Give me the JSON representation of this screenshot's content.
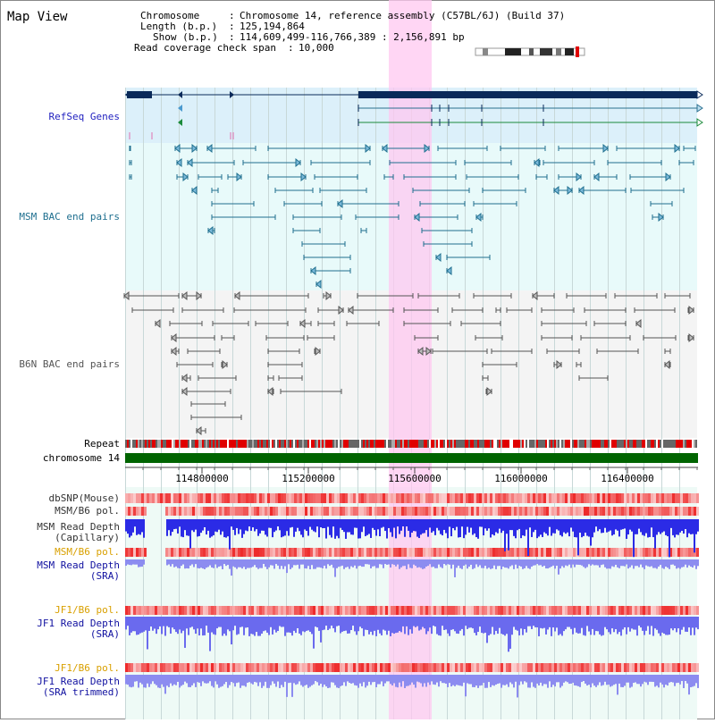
{
  "title": "Map View",
  "info": {
    "chromosome_label": "Chromosome",
    "chromosome_value": "Chromosome 14, reference assembly (C57BL/6J) (Build 37)",
    "length_label": "Length (b.p.)",
    "length_value": "125,194,864",
    "show_label": "Show (b.p.)",
    "show_value": "114,609,499-116,766,389 : 2,156,891 bp",
    "span_label": "Read coverage check span",
    "span_value": "10,000"
  },
  "tracks": {
    "refseq": "RefSeq Genes",
    "msm_bac": "MSM BAC end pairs",
    "b6n_bac": "B6N BAC end pairs",
    "repeat": "Repeat",
    "chromosome": "chromosome 14",
    "dbsnp": "dbSNP(Mouse)",
    "msm_pol1": "MSM/B6 pol.",
    "msm_depth_cap_1": "MSM Read Depth",
    "msm_depth_cap_2": "(Capillary)",
    "msm_pol2": "MSM/B6 pol.",
    "msm_depth_sra_1": "MSM Read Depth",
    "msm_depth_sra_2": "(SRA)",
    "jf1_pol1": "JF1/B6 pol.",
    "jf1_depth_sra_1": "JF1 Read Depth",
    "jf1_depth_sra_2": "(SRA)",
    "jf1_pol2": "JF1/B6 pol.",
    "jf1_depth_trim_1": "JF1 Read Depth",
    "jf1_depth_trim_2": "(SRA trimmed)"
  },
  "axis": {
    "ticks": [
      "114800000",
      "115200000",
      "115600000",
      "116000000",
      "116400000"
    ]
  },
  "colors": {
    "refseq_label": "#1f1fbf",
    "msm_label": "#1f6f8f",
    "b6n_label": "#555555",
    "pol_label": "#d9a000",
    "sra_label": "#1010a0",
    "highlight": "#ffc8f0",
    "chromosome": "#006400",
    "depth": "#2b2be6"
  }
}
